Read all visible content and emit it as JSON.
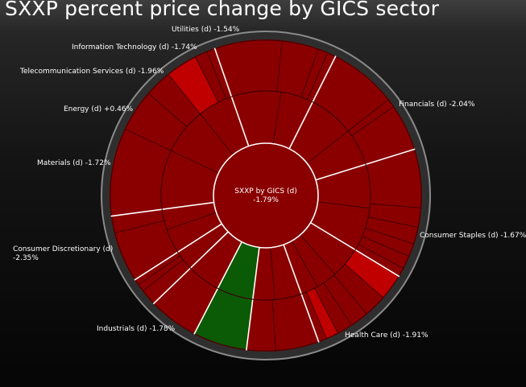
{
  "title": "SXXP percent price change by GICS sector",
  "colors": {
    "negative": "#8a0000",
    "strong_negative": "#c00000",
    "positive": "#0b5a05",
    "divider_sector": "#ffffff",
    "divider_sub": "#3a0000",
    "frame": "#8a8a8a"
  },
  "chart_data": {
    "type": "sunburst",
    "center": {
      "label": "SXXP by GICS (d)",
      "value": "-1.79%",
      "change": -1.79
    },
    "sectors": [
      {
        "name": "Financials",
        "label": "Financials (d) -2.04%",
        "change": -2.04,
        "share": 0.218,
        "industries": [
          0.42,
          0.33,
          0.25
        ],
        "subs": [
          0.42,
          0.2,
          0.13,
          0.15,
          0.06,
          0.04
        ]
      },
      {
        "name": "Consumer Staples",
        "label": "Consumer Staples (d) -1.67%",
        "change": -1.67,
        "share": 0.127,
        "industries": [
          0.6,
          0.4
        ],
        "subs": [
          0.55,
          0.3,
          0.08,
          0.07
        ]
      },
      {
        "name": "Health Care",
        "label": "Health Care (d) -1.91%",
        "change": -1.91,
        "share": 0.128,
        "industries": [
          0.55,
          0.45
        ],
        "subs": [
          0.55,
          0.07,
          0.38
        ]
      },
      {
        "name": "Industrials",
        "label": "Industrials (d) -1.78%",
        "change": -1.78,
        "share": 0.135,
        "industries": [
          0.5,
          0.5
        ],
        "subs": [
          0.45,
          0.15,
          0.13,
          0.1,
          0.1,
          0.07
        ]
      },
      {
        "name": "Consumer Discretionary",
        "label": "Consumer Discretionary (d) -2.35%",
        "change": -2.35,
        "share": 0.108,
        "industries": [
          0.45,
          0.3,
          0.25
        ],
        "subs": [
          0.25,
          0.22,
          0.18,
          0.15,
          0.12,
          0.08
        ]
      },
      {
        "name": "Materials",
        "label": "Materials (d) -1.72%",
        "change": -1.72,
        "share": 0.075,
        "industries": [
          0.55,
          0.45
        ],
        "subs": [
          0.6,
          0.4
        ]
      },
      {
        "name": "Energy",
        "label": "Energy (d) +0.46%",
        "change": 0.46,
        "share": 0.056,
        "industries": [
          1.0
        ],
        "subs": [
          1.0
        ]
      },
      {
        "name": "Telecommunication Services",
        "label": "Telecommunication Services (d) -1.96%",
        "change": -1.96,
        "share": 0.052,
        "industries": [
          1.0
        ],
        "subs": [
          1.0
        ]
      },
      {
        "name": "Information Technology",
        "label": "Information Technology (d) -1.74%",
        "change": -1.74,
        "share": 0.031,
        "industries": [
          1.0
        ],
        "subs": [
          0.55,
          0.25,
          0.2
        ]
      },
      {
        "name": "Utilities",
        "label": "Utilities (d) -1.54%",
        "change": -1.54,
        "share": 0.07,
        "industries": [
          0.55,
          0.45
        ],
        "subs": [
          0.75,
          0.25
        ]
      }
    ]
  }
}
